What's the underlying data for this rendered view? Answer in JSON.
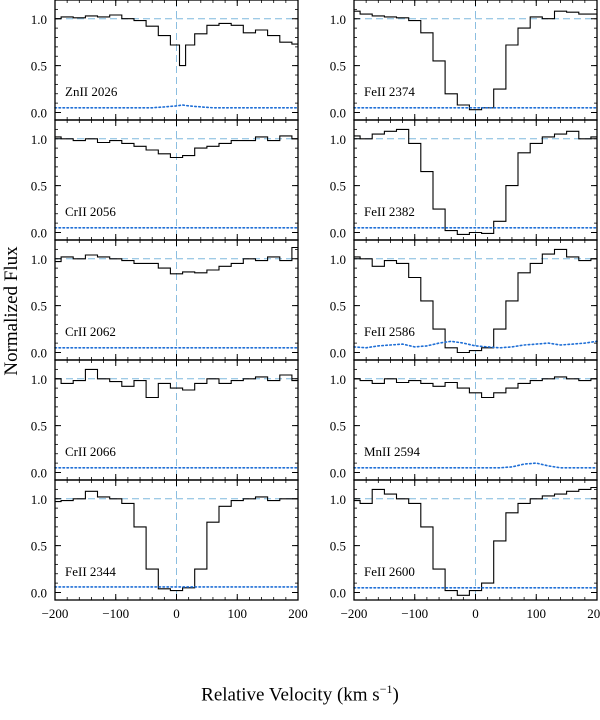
{
  "chart_data": {
    "type": "line",
    "ylabel": "Normalized Flux",
    "xlabel_main": "Relative Velocity  (km s",
    "xlabel_sup": "−1",
    "xlabel_close": ")",
    "xlim": [
      -200,
      200
    ],
    "ylim": [
      -0.08,
      1.2
    ],
    "x_ticks": [
      "−200",
      "−100",
      "0",
      "100",
      "200"
    ],
    "y_ticks": [
      "0.0",
      "0.5",
      "1.0"
    ],
    "colors": {
      "spectrum": "#000000",
      "error": "#1f6fd6",
      "reference": "#7fb8dd"
    },
    "panels": [
      {
        "label": "ZnII 2026",
        "column": 0,
        "row": 0,
        "x": [
          -200,
          -180,
          -160,
          -140,
          -120,
          -100,
          -80,
          -60,
          -40,
          -20,
          0,
          10,
          20,
          40,
          60,
          80,
          100,
          120,
          140,
          160,
          180,
          200
        ],
        "flux": [
          1.0,
          1.02,
          1.01,
          1.03,
          1.02,
          1.04,
          1.0,
          0.98,
          0.92,
          0.82,
          0.72,
          0.5,
          0.72,
          0.84,
          0.93,
          0.95,
          0.93,
          0.85,
          0.88,
          0.82,
          0.75,
          0.73
        ],
        "error": [
          0.05,
          0.05,
          0.05,
          0.05,
          0.05,
          0.05,
          0.05,
          0.05,
          0.05,
          0.06,
          0.07,
          0.08,
          0.07,
          0.06,
          0.05,
          0.05,
          0.05,
          0.05,
          0.05,
          0.05,
          0.05,
          0.05
        ]
      },
      {
        "label": "FeII 2374",
        "column": 1,
        "row": 0,
        "x": [
          -200,
          -180,
          -160,
          -140,
          -120,
          -100,
          -80,
          -60,
          -40,
          -20,
          0,
          20,
          40,
          60,
          80,
          100,
          120,
          140,
          160,
          180,
          200
        ],
        "flux": [
          1.08,
          1.05,
          1.03,
          1.02,
          1.01,
          0.98,
          0.85,
          0.55,
          0.2,
          0.08,
          0.03,
          0.05,
          0.25,
          0.72,
          0.9,
          1.02,
          1.0,
          1.08,
          1.07,
          1.05,
          1.05
        ],
        "error": [
          0.05,
          0.05,
          0.05,
          0.05,
          0.05,
          0.05,
          0.05,
          0.05,
          0.05,
          0.05,
          0.05,
          0.05,
          0.05,
          0.05,
          0.05,
          0.05,
          0.05,
          0.05,
          0.05,
          0.05,
          0.05
        ]
      },
      {
        "label": "CrII 2056",
        "column": 0,
        "row": 1,
        "x": [
          -200,
          -180,
          -160,
          -140,
          -120,
          -100,
          -80,
          -60,
          -40,
          -20,
          0,
          20,
          40,
          60,
          80,
          100,
          120,
          140,
          160,
          180,
          200
        ],
        "flux": [
          1.02,
          1.0,
          0.98,
          1.0,
          0.96,
          0.98,
          0.95,
          0.92,
          0.88,
          0.84,
          0.8,
          0.82,
          0.9,
          0.92,
          0.95,
          0.98,
          0.98,
          1.02,
          0.98,
          1.03,
          1.0
        ],
        "error": [
          0.05,
          0.05,
          0.05,
          0.05,
          0.05,
          0.05,
          0.05,
          0.05,
          0.05,
          0.05,
          0.05,
          0.05,
          0.05,
          0.05,
          0.05,
          0.05,
          0.05,
          0.05,
          0.05,
          0.05,
          0.05
        ]
      },
      {
        "label": "FeII 2382",
        "column": 1,
        "row": 1,
        "x": [
          -200,
          -180,
          -160,
          -140,
          -120,
          -100,
          -80,
          -60,
          -40,
          -20,
          0,
          20,
          40,
          60,
          80,
          100,
          120,
          140,
          160,
          180,
          200
        ],
        "flux": [
          1.03,
          1.0,
          1.05,
          1.08,
          1.1,
          0.95,
          0.65,
          0.25,
          0.02,
          -0.02,
          0.0,
          -0.01,
          0.12,
          0.5,
          0.85,
          0.95,
          1.02,
          1.05,
          1.08,
          1.0,
          1.02
        ],
        "error": [
          0.05,
          0.05,
          0.05,
          0.05,
          0.05,
          0.05,
          0.05,
          0.05,
          0.05,
          0.05,
          0.05,
          0.05,
          0.05,
          0.05,
          0.05,
          0.05,
          0.05,
          0.05,
          0.05,
          0.05,
          0.05
        ]
      },
      {
        "label": "CrII 2062",
        "column": 0,
        "row": 2,
        "x": [
          -200,
          -180,
          -160,
          -140,
          -120,
          -100,
          -80,
          -60,
          -40,
          -20,
          0,
          20,
          40,
          60,
          80,
          100,
          120,
          140,
          160,
          180,
          200
        ],
        "flux": [
          0.97,
          1.02,
          1.0,
          1.04,
          1.02,
          1.0,
          0.98,
          0.95,
          0.95,
          0.9,
          0.84,
          0.86,
          0.85,
          0.88,
          0.92,
          0.95,
          1.0,
          0.98,
          1.02,
          0.98,
          1.12
        ],
        "error": [
          0.05,
          0.05,
          0.05,
          0.05,
          0.05,
          0.05,
          0.05,
          0.05,
          0.05,
          0.05,
          0.05,
          0.05,
          0.05,
          0.05,
          0.05,
          0.05,
          0.05,
          0.05,
          0.05,
          0.05,
          0.05
        ]
      },
      {
        "label": "FeII 2586",
        "column": 1,
        "row": 2,
        "x": [
          -200,
          -180,
          -160,
          -140,
          -120,
          -100,
          -80,
          -60,
          -40,
          -20,
          0,
          20,
          40,
          60,
          80,
          100,
          120,
          140,
          160,
          180,
          200
        ],
        "flux": [
          1.02,
          1.0,
          0.92,
          0.98,
          0.95,
          0.8,
          0.55,
          0.25,
          0.05,
          0.0,
          0.02,
          0.05,
          0.25,
          0.55,
          0.85,
          0.95,
          1.05,
          1.1,
          1.02,
          0.98,
          1.0
        ],
        "error": [
          0.06,
          0.05,
          0.07,
          0.08,
          0.09,
          0.06,
          0.07,
          0.1,
          0.12,
          0.1,
          0.07,
          0.06,
          0.05,
          0.06,
          0.08,
          0.09,
          0.1,
          0.08,
          0.09,
          0.1,
          0.12
        ]
      },
      {
        "label": "CrII 2066",
        "column": 0,
        "row": 3,
        "x": [
          -200,
          -180,
          -160,
          -140,
          -120,
          -100,
          -80,
          -60,
          -40,
          -20,
          0,
          20,
          40,
          60,
          80,
          100,
          120,
          140,
          160,
          180,
          200
        ],
        "flux": [
          1.0,
          0.95,
          0.98,
          1.1,
          1.0,
          0.97,
          0.92,
          0.98,
          0.8,
          0.95,
          0.9,
          0.88,
          0.95,
          1.0,
          0.95,
          0.98,
          1.0,
          1.02,
          0.98,
          1.04,
          0.98
        ],
        "error": [
          0.05,
          0.05,
          0.05,
          0.05,
          0.05,
          0.05,
          0.05,
          0.05,
          0.05,
          0.05,
          0.05,
          0.05,
          0.05,
          0.05,
          0.05,
          0.05,
          0.05,
          0.05,
          0.05,
          0.05,
          0.05
        ]
      },
      {
        "label": "MnII 2594",
        "column": 1,
        "row": 3,
        "x": [
          -200,
          -180,
          -160,
          -140,
          -120,
          -100,
          -80,
          -60,
          -40,
          -20,
          0,
          20,
          40,
          60,
          80,
          100,
          120,
          140,
          160,
          180,
          200
        ],
        "flux": [
          1.0,
          0.98,
          0.95,
          1.0,
          0.96,
          0.98,
          0.95,
          0.92,
          0.96,
          0.9,
          0.85,
          0.8,
          0.85,
          0.9,
          0.95,
          0.98,
          1.0,
          1.02,
          1.0,
          0.98,
          1.0
        ],
        "error": [
          0.05,
          0.05,
          0.05,
          0.05,
          0.05,
          0.05,
          0.05,
          0.05,
          0.05,
          0.05,
          0.05,
          0.05,
          0.05,
          0.06,
          0.09,
          0.1,
          0.07,
          0.05,
          0.05,
          0.05,
          0.05
        ]
      },
      {
        "label": "FeII 2344",
        "column": 0,
        "row": 4,
        "x": [
          -200,
          -180,
          -160,
          -140,
          -120,
          -100,
          -80,
          -60,
          -40,
          -20,
          0,
          20,
          40,
          60,
          80,
          100,
          120,
          140,
          160,
          180,
          200
        ],
        "flux": [
          0.97,
          0.98,
          1.0,
          1.08,
          1.02,
          1.0,
          0.95,
          0.7,
          0.25,
          0.04,
          0.02,
          0.05,
          0.25,
          0.75,
          0.92,
          0.98,
          1.0,
          1.02,
          0.98,
          1.0,
          1.0
        ],
        "error": [
          0.06,
          0.06,
          0.06,
          0.06,
          0.06,
          0.06,
          0.06,
          0.06,
          0.06,
          0.06,
          0.06,
          0.06,
          0.06,
          0.06,
          0.06,
          0.06,
          0.06,
          0.06,
          0.06,
          0.06,
          0.06
        ]
      },
      {
        "label": "FeII 2600",
        "column": 1,
        "row": 4,
        "x": [
          -200,
          -180,
          -160,
          -140,
          -120,
          -100,
          -80,
          -60,
          -40,
          -20,
          0,
          20,
          40,
          60,
          80,
          100,
          120,
          140,
          160,
          180,
          200
        ],
        "flux": [
          0.98,
          0.95,
          1.1,
          1.05,
          1.0,
          0.95,
          0.7,
          0.25,
          0.02,
          -0.03,
          0.02,
          0.1,
          0.55,
          0.85,
          0.95,
          1.0,
          1.03,
          1.05,
          1.08,
          1.1,
          1.12
        ],
        "error": [
          0.05,
          0.05,
          0.05,
          0.05,
          0.05,
          0.05,
          0.05,
          0.05,
          0.05,
          0.05,
          0.05,
          0.05,
          0.05,
          0.05,
          0.05,
          0.05,
          0.05,
          0.05,
          0.05,
          0.05,
          0.05
        ]
      }
    ]
  }
}
